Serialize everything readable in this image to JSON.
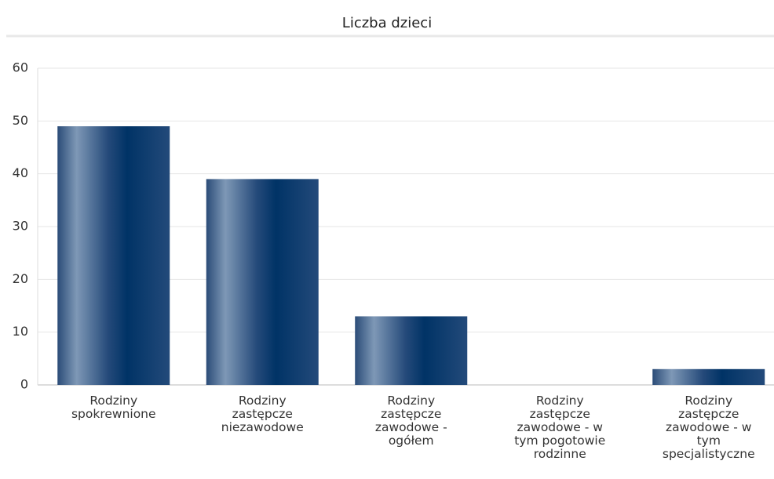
{
  "chart_data": {
    "type": "bar",
    "title": "Liczba dzieci",
    "categories": [
      "Rodziny spokrewnione",
      "Rodziny zastępcze niezawodowe",
      "Rodziny zastępcze zawodowe - ogółem",
      "Rodziny zastępcze zawodowe - w tym pogotowie rodzinne",
      "Rodziny zastępcze zawodowe - w tym specjalistyczne"
    ],
    "values": [
      49,
      39,
      13,
      0,
      3
    ],
    "color": "#003366",
    "ylim": [
      0,
      60
    ],
    "yticks": [
      0,
      10,
      20,
      30,
      40,
      50,
      60
    ],
    "grid": true
  }
}
